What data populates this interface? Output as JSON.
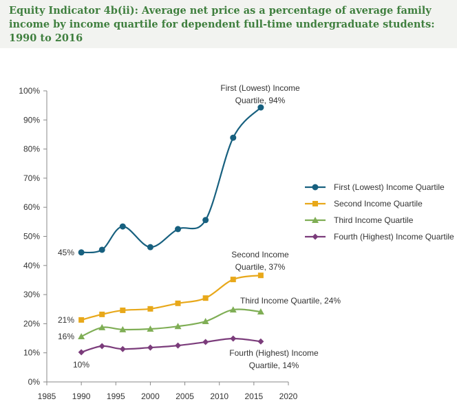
{
  "header": {
    "title": "Equity Indicator 4b(ii): Average net price as a percentage of average family income by income quartile for dependent full-time undergraduate students: 1990 to 2016"
  },
  "chart_data": {
    "type": "line",
    "title": "Equity Indicator 4b(ii): Average net price as a percentage of average family income by income quartile for dependent full-time undergraduate students: 1990 to 2016",
    "x": [
      1990,
      1993,
      1996,
      2000,
      2004,
      2008,
      2012,
      2016
    ],
    "xlim": [
      1985,
      2020
    ],
    "xticks": [
      1985,
      1990,
      1995,
      2000,
      2005,
      2010,
      2015,
      2020
    ],
    "ylim": [
      0,
      100
    ],
    "yticks": [
      "0%",
      "10%",
      "20%",
      "30%",
      "40%",
      "50%",
      "60%",
      "70%",
      "80%",
      "90%",
      "100%"
    ],
    "grid": false,
    "legend_position": "right",
    "series": [
      {
        "name": "First (Lowest) Income Quartile",
        "color": "#17607f",
        "marker": "circle",
        "values": [
          44.5,
          45.4,
          53.4,
          46.3,
          52.5,
          55.6,
          83.9,
          94.3
        ]
      },
      {
        "name": "Second Income Quartile",
        "color": "#e8a81a",
        "marker": "square",
        "values": [
          21.3,
          23.2,
          24.6,
          25.1,
          27.0,
          28.8,
          35.2,
          36.6
        ]
      },
      {
        "name": "Third Income Quartile",
        "color": "#7fae55",
        "marker": "triangle",
        "values": [
          15.6,
          18.7,
          18.0,
          18.2,
          19.1,
          20.8,
          24.8,
          24.1
        ]
      },
      {
        "name": "Fourth (Highest) Income Quartile",
        "color": "#7b3c7b",
        "marker": "diamond",
        "values": [
          10.2,
          12.3,
          11.3,
          11.8,
          12.5,
          13.7,
          14.9,
          13.9
        ]
      }
    ],
    "annotations": [
      {
        "lines": [
          "First (Lowest) Income",
          "Quartile, 94%"
        ]
      },
      {
        "lines": [
          "45%"
        ]
      },
      {
        "lines": [
          "Second Income",
          "Quartile, 37%"
        ]
      },
      {
        "lines": [
          "21%"
        ]
      },
      {
        "lines": [
          "Third Income Quartile, 24%"
        ]
      },
      {
        "lines": [
          "16%"
        ]
      },
      {
        "lines": [
          "Fourth (Highest) Income",
          "Quartile, 14%"
        ]
      },
      {
        "lines": [
          "10%"
        ]
      }
    ]
  }
}
